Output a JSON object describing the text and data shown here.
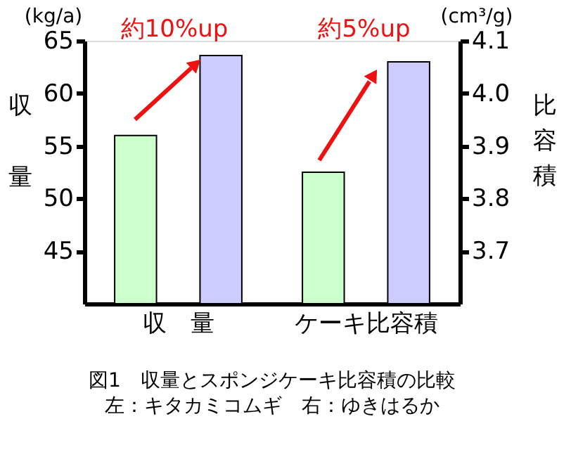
{
  "chart_data": {
    "type": "bar",
    "title": "図1　収量とスポンジケーキ比容積の比較",
    "subtitle": "左：キタカミコムギ　右：ゆきはるか",
    "ylabel": "収量",
    "y2label": "比容積",
    "categories": [
      "収　量",
      "ケーキ比容積"
    ],
    "series": [
      {
        "color": "#ccffcc",
        "values": [
          56,
          null
        ]
      },
      {
        "color": "#ccccff",
        "values": [
          63.6,
          null
        ]
      },
      {
        "color": "#ccffcc",
        "values": [
          null,
          3.85
        ],
        "axis": "y2"
      },
      {
        "color": "#ccccff",
        "values": [
          null,
          4.06
        ],
        "axis": "y2"
      }
    ],
    "ylim": [
      40,
      65
    ],
    "yticks": [
      45,
      50,
      55,
      60,
      65
    ],
    "y2lim": [
      3.6,
      4.1
    ],
    "y2ticks": [
      3.7,
      3.8,
      3.9,
      {
        "value": 4,
        "label": "4.0"
      },
      4.1
    ],
    "annotations": [
      "約10%up",
      "約5%up",
      "(kg/a)",
      "(cm³/g)"
    ]
  }
}
